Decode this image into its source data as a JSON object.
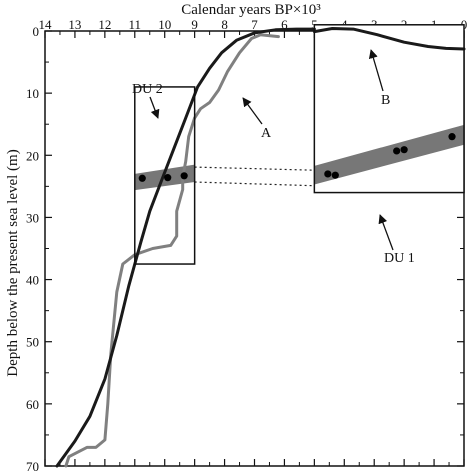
{
  "chart_data": {
    "type": "line",
    "title": "",
    "xlabel": "Calendar years BP×10³",
    "ylabel": "Depth below the present sea level (m)",
    "x_axis_position": "top",
    "x_reversed": true,
    "y_reversed": true,
    "xlim": [
      14,
      0
    ],
    "ylim": [
      0,
      70
    ],
    "x_ticks": [
      14,
      13,
      12,
      11,
      10,
      9,
      8,
      7,
      6,
      5,
      4,
      3,
      2,
      1,
      0
    ],
    "y_ticks": [
      0,
      10,
      20,
      30,
      40,
      50,
      60,
      70
    ],
    "grid": false,
    "series": [
      {
        "name": "A",
        "color": "#808080",
        "stroke": 3,
        "points": [
          [
            13.3,
            70
          ],
          [
            13.2,
            68.5
          ],
          [
            12.6,
            67
          ],
          [
            12.3,
            67
          ],
          [
            12.0,
            65.8
          ],
          [
            11.9,
            60
          ],
          [
            11.8,
            52
          ],
          [
            11.6,
            42
          ],
          [
            11.4,
            37.5
          ],
          [
            11.0,
            36
          ],
          [
            10.4,
            35
          ],
          [
            9.8,
            34.5
          ],
          [
            9.6,
            33
          ],
          [
            9.6,
            29
          ],
          [
            9.4,
            25.5
          ],
          [
            9.4,
            23.5
          ],
          [
            9.3,
            21
          ],
          [
            9.2,
            17
          ],
          [
            9.0,
            14
          ],
          [
            8.8,
            12.5
          ],
          [
            8.5,
            11.5
          ],
          [
            8.2,
            9.5
          ],
          [
            7.9,
            6.5
          ],
          [
            7.5,
            3.5
          ],
          [
            7.1,
            1.2
          ],
          [
            6.8,
            0.6
          ],
          [
            6.2,
            0.9
          ]
        ]
      },
      {
        "name": "",
        "color": "#1a1a1a",
        "stroke": 3,
        "points": [
          [
            13.6,
            70
          ],
          [
            13.0,
            66
          ],
          [
            12.5,
            62
          ],
          [
            12.0,
            56
          ],
          [
            11.6,
            49
          ],
          [
            11.2,
            41
          ],
          [
            10.8,
            34
          ],
          [
            10.5,
            29
          ],
          [
            10.1,
            24
          ],
          [
            9.7,
            19
          ],
          [
            9.3,
            14
          ],
          [
            8.9,
            9
          ],
          [
            8.5,
            6
          ],
          [
            8.1,
            3.5
          ],
          [
            7.6,
            1.5
          ],
          [
            7.0,
            0.3
          ],
          [
            6.3,
            -0.2
          ],
          [
            5.6,
            -0.3
          ],
          [
            5.0,
            -0.3
          ]
        ]
      },
      {
        "name": "B",
        "color": "#1a1a1a",
        "stroke": 3,
        "inset": true,
        "x_range": [
          5,
          0
        ],
        "points": [
          [
            5.0,
            0.1
          ],
          [
            4.4,
            -0.4
          ],
          [
            3.7,
            -0.3
          ],
          [
            2.9,
            0.6
          ],
          [
            2.0,
            1.8
          ],
          [
            1.2,
            2.5
          ],
          [
            0.6,
            2.8
          ],
          [
            0.0,
            2.9
          ]
        ]
      }
    ],
    "dated_samples_du2": [
      {
        "x": 10.75,
        "y": 23.7
      },
      {
        "x": 9.9,
        "y": 23.6
      },
      {
        "x": 9.35,
        "y": 23.3
      }
    ],
    "dated_samples_du1": [
      {
        "x": 4.55,
        "y": 23.0
      },
      {
        "x": 4.3,
        "y": 23.2
      },
      {
        "x": 2.25,
        "y": 19.3
      },
      {
        "x": 2.0,
        "y": 19.1
      },
      {
        "x": 0.4,
        "y": 17.0
      }
    ],
    "boxes": [
      {
        "label": "DU 2",
        "x_range": [
          11,
          9
        ],
        "y_range": [
          9,
          37.5
        ]
      },
      {
        "label": "",
        "x_range": [
          5,
          0
        ],
        "y_range": [
          -1,
          26
        ]
      }
    ],
    "annotations": [
      {
        "text": "DU 2",
        "points_to": "left box"
      },
      {
        "text": "A",
        "points_to": "grey curve"
      },
      {
        "text": "B",
        "points_to": "inset curve"
      },
      {
        "text": "DU 1",
        "points_to": "right box"
      }
    ]
  }
}
